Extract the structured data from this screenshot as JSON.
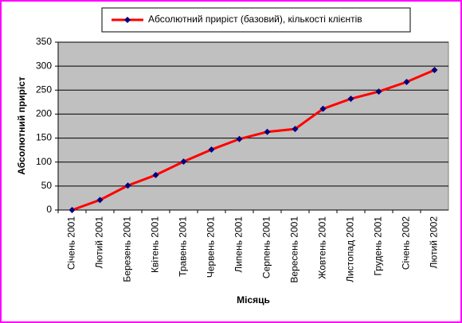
{
  "chart_data": {
    "type": "line",
    "x_label": "Місяць",
    "y_label": "Абсолютний приріст",
    "categories": [
      "Січень 2001",
      "Лютий 2001",
      "Березень 2001",
      "Квітень 2001",
      "Травень 2001",
      "Червень 2001",
      "Липень 2001",
      "Серпень 2001",
      "Вересень 2001",
      "Жовтень 2001",
      "Листопад 2001",
      "Грудень 2001",
      "Січень 2002",
      "Лютий 2002"
    ],
    "series": [
      {
        "name": "Абсолютний приріст (базовий), кількості клієнтів",
        "color": "#ff0000",
        "marker_color": "#000080",
        "values": [
          0,
          21,
          51,
          73,
          101,
          126,
          148,
          163,
          169,
          211,
          232,
          247,
          267,
          292
        ]
      }
    ],
    "ylim": [
      0,
      350
    ],
    "yticks": [
      0,
      50,
      100,
      150,
      200,
      250,
      300,
      350
    ],
    "grid": true,
    "legend": "top"
  }
}
